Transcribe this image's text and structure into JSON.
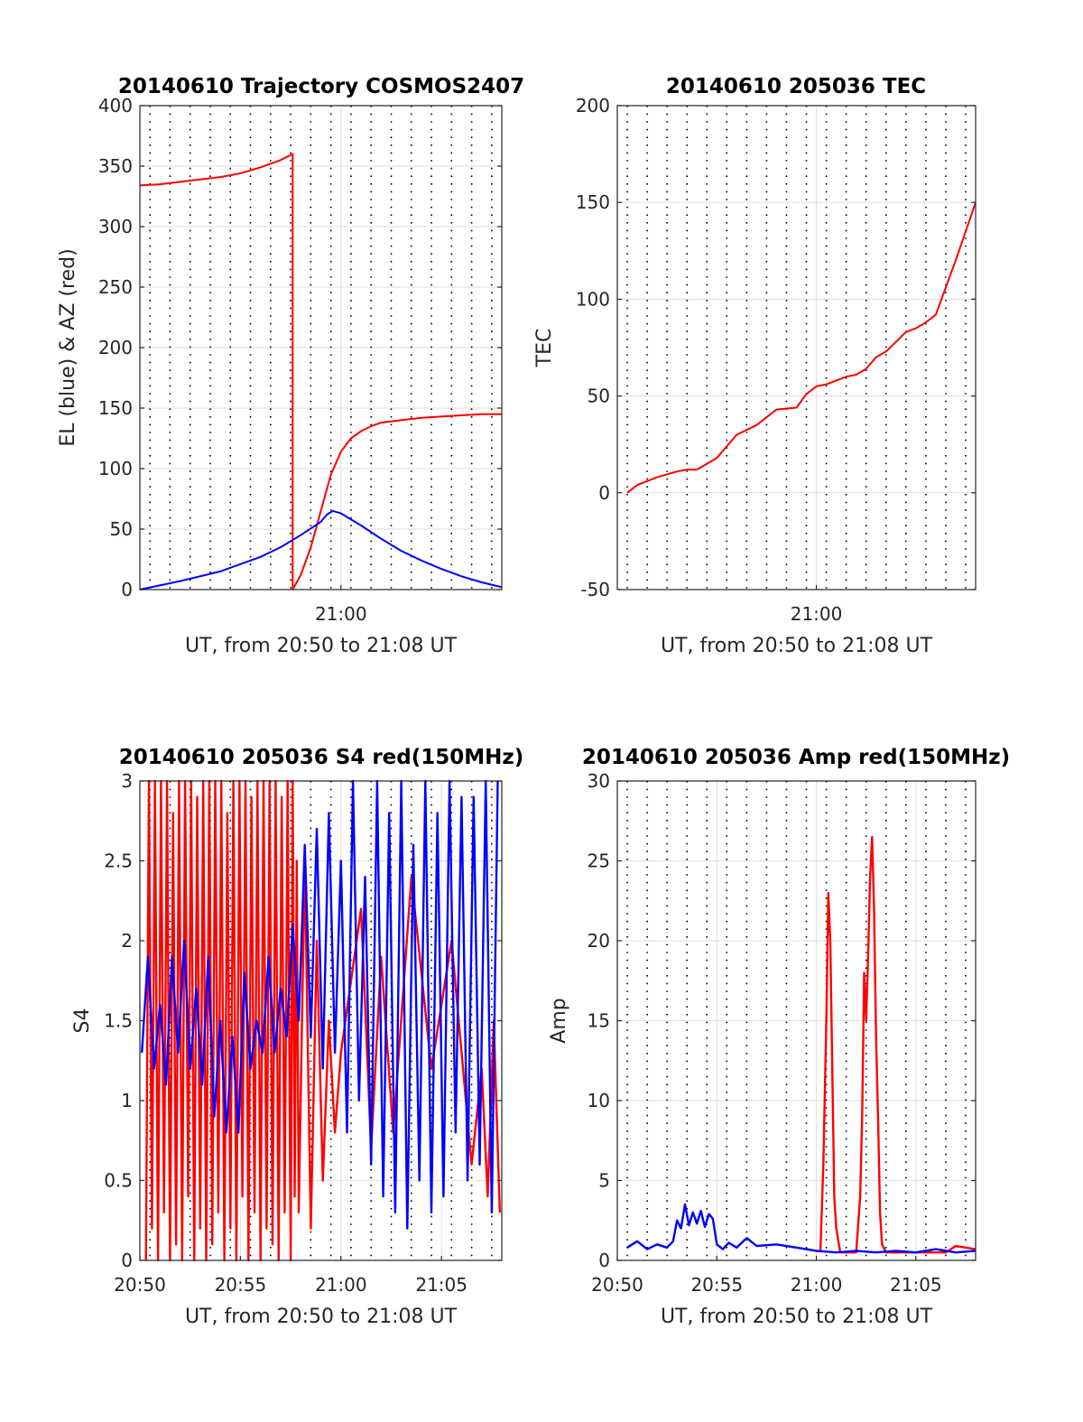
{
  "chart_data": [
    {
      "id": "trajectory",
      "type": "line",
      "title": "20140610 Trajectory COSMOS2407",
      "xlabel": "UT, from 20:50 to 21:08 UT",
      "ylabel": "EL (blue) & AZ (red)",
      "xlim": [
        0,
        18
      ],
      "ylim": [
        0,
        400
      ],
      "yticks": [
        0,
        50,
        100,
        150,
        200,
        250,
        300,
        350,
        400
      ],
      "xticks": [
        {
          "value": 10,
          "label": "21:00"
        }
      ],
      "grid": true,
      "series": [
        {
          "color": "#ff0000",
          "x": [
            0,
            1,
            2,
            3,
            4,
            5,
            6,
            7,
            7.6,
            7.6,
            8,
            8.5,
            9,
            9.5,
            10,
            10.5,
            11,
            11.5,
            12,
            13,
            14,
            15,
            16,
            17,
            18
          ],
          "y": [
            334,
            335,
            337,
            339,
            341,
            344,
            349,
            355,
            360,
            0,
            12,
            35,
            65,
            95,
            114,
            125,
            131,
            135,
            138,
            140,
            142,
            143,
            144,
            145,
            145
          ]
        },
        {
          "color": "#0000ff",
          "x": [
            0,
            2,
            4,
            6,
            7,
            8,
            9,
            9.3,
            9.6,
            10,
            11,
            12,
            13,
            14,
            15,
            16,
            17,
            18
          ],
          "y": [
            0,
            7,
            15,
            27,
            35,
            45,
            56,
            62,
            65,
            63,
            53,
            42,
            32,
            24,
            17,
            11,
            6,
            2
          ]
        }
      ]
    },
    {
      "id": "tec",
      "type": "line",
      "title": "20140610 205036 TEC",
      "xlabel": "UT, from 20:50 to 21:08 UT",
      "ylabel": "TEC",
      "xlim": [
        0,
        18
      ],
      "ylim": [
        -50,
        200
      ],
      "yticks": [
        -50,
        0,
        50,
        100,
        150,
        200
      ],
      "xticks": [
        {
          "value": 10,
          "label": "21:00"
        }
      ],
      "grid": true,
      "series": [
        {
          "color": "#ff0000",
          "x": [
            0.5,
            1,
            1.5,
            2,
            3,
            3.5,
            4,
            5,
            6,
            7,
            8,
            9,
            9.5,
            10,
            10.5,
            11,
            11.5,
            12,
            12.5,
            13,
            13.5,
            14,
            14.5,
            15,
            15.5,
            16,
            16.5,
            17,
            17.5,
            18
          ],
          "y": [
            0,
            4,
            6,
            8,
            11,
            12,
            12,
            18,
            30,
            35,
            43,
            44,
            51,
            55,
            56,
            58,
            60,
            61,
            64,
            70,
            73,
            78,
            83,
            85,
            88,
            92,
            106,
            120,
            135,
            150
          ]
        }
      ]
    },
    {
      "id": "s4",
      "type": "line",
      "title": "20140610 205036 S4 red(150MHz)",
      "xlabel": "UT, from 20:50 to 21:08 UT",
      "ylabel": "S4",
      "xlim": [
        0,
        18
      ],
      "ylim": [
        0,
        3
      ],
      "yticks": [
        0,
        0.5,
        1,
        1.5,
        2,
        2.5,
        3
      ],
      "yticklabels": [
        "0",
        "0.5",
        "1",
        "1.5",
        "2",
        "2.5",
        "3"
      ],
      "xticks": [
        {
          "value": 0,
          "label": "20:50"
        },
        {
          "value": 5,
          "label": "20:55"
        },
        {
          "value": 10,
          "label": "21:00"
        },
        {
          "value": 15,
          "label": "21:05"
        }
      ],
      "grid": true,
      "series": [
        {
          "color": "#ff0000",
          "x": [
            0.3,
            0.45,
            0.6,
            0.75,
            0.9,
            1.05,
            1.2,
            1.35,
            1.5,
            1.65,
            1.8,
            1.95,
            2.1,
            2.25,
            2.4,
            2.55,
            2.7,
            2.85,
            3.0,
            3.15,
            3.3,
            3.45,
            3.6,
            3.75,
            3.9,
            4.05,
            4.2,
            4.35,
            4.5,
            4.65,
            4.8,
            4.95,
            5.1,
            5.25,
            5.4,
            5.55,
            5.7,
            5.85,
            6.0,
            6.15,
            6.3,
            6.45,
            6.6,
            6.75,
            6.9,
            7.05,
            7.2,
            7.35,
            7.5,
            7.6,
            7.7,
            7.8,
            7.9,
            8.2,
            8.5,
            8.8,
            9.1,
            9.4,
            9.7,
            10.0,
            11.0,
            11.5,
            12.0,
            12.6,
            13.5,
            14.5,
            15.5,
            16.5,
            17.0,
            17.3,
            17.6,
            17.9
          ],
          "y": [
            0,
            3,
            0.2,
            3,
            0,
            3,
            0.3,
            3,
            0,
            2.8,
            0.1,
            3,
            0,
            3,
            0.4,
            3,
            0,
            2.9,
            0.2,
            3,
            0,
            3,
            0.1,
            3,
            0.3,
            3,
            0,
            2.8,
            0.2,
            3,
            0,
            3,
            0.4,
            3,
            0,
            2.9,
            0.3,
            3,
            0,
            3,
            0.2,
            3,
            0.1,
            3,
            0,
            2.9,
            0.3,
            3,
            0,
            3,
            0.4,
            2.5,
            0.3,
            2.5,
            0.2,
            2.0,
            0.5,
            1.5,
            0.8,
            1.3,
            2.2,
            0.7,
            1.9,
            0.8,
            2.4,
            1.2,
            2.0,
            0.6,
            1.2,
            0.4,
            1.5,
            0.3
          ]
        },
        {
          "color": "#0000ff",
          "x": [
            0.1,
            0.4,
            0.7,
            1.0,
            1.3,
            1.6,
            1.9,
            2.2,
            2.5,
            2.8,
            3.1,
            3.4,
            3.7,
            4.0,
            4.3,
            4.6,
            4.9,
            5.2,
            5.5,
            5.8,
            6.1,
            6.4,
            6.7,
            7.0,
            7.3,
            7.6,
            7.9,
            8.2,
            8.5,
            8.8,
            9.1,
            9.4,
            9.7,
            10.0,
            10.3,
            10.6,
            10.9,
            11.2,
            11.5,
            11.8,
            12.1,
            12.4,
            12.7,
            13.0,
            13.3,
            13.6,
            13.9,
            14.2,
            14.5,
            14.8,
            15.1,
            15.4,
            15.7,
            16.0,
            16.3,
            16.6,
            16.9,
            17.2,
            17.5,
            17.8
          ],
          "y": [
            1.3,
            1.9,
            1.2,
            1.6,
            1.1,
            1.9,
            1.3,
            2.0,
            1.2,
            1.7,
            1.1,
            1.9,
            0.9,
            1.5,
            0.8,
            1.4,
            0.8,
            1.8,
            1.2,
            1.5,
            1.3,
            1.9,
            1.3,
            1.7,
            1.4,
            2.1,
            1.5,
            2.6,
            1.4,
            2.7,
            1.2,
            2.8,
            1.3,
            2.5,
            0.8,
            3.0,
            1.0,
            2.4,
            0.6,
            3.0,
            0.4,
            2.8,
            0.3,
            3.0,
            0.2,
            2.6,
            0.5,
            3.0,
            0.3,
            2.8,
            0.4,
            3.0,
            0.8,
            2.9,
            0.5,
            2.9,
            0.6,
            3.0,
            0.3,
            3.0
          ]
        }
      ]
    },
    {
      "id": "amp",
      "type": "line",
      "title": "20140610 205036 Amp red(150MHz)",
      "xlabel": "UT, from 20:50 to 21:08 UT",
      "ylabel": "Amp",
      "xlim": [
        0,
        18
      ],
      "ylim": [
        0,
        30
      ],
      "yticks": [
        0,
        5,
        10,
        15,
        20,
        25,
        30
      ],
      "xticks": [
        {
          "value": 0,
          "label": "20:50"
        },
        {
          "value": 5,
          "label": "20:55"
        },
        {
          "value": 10,
          "label": "21:00"
        },
        {
          "value": 15,
          "label": "21:05"
        }
      ],
      "grid": true,
      "series": [
        {
          "color": "#ff0000",
          "x": [
            10.2,
            10.35,
            10.5,
            10.6,
            10.7,
            10.8,
            10.9,
            11.0,
            11.2,
            12.0,
            12.2,
            12.3,
            12.4,
            12.5,
            12.6,
            12.7,
            12.8,
            12.9,
            13.0,
            13.1,
            13.2,
            13.3,
            13.5,
            16.5,
            17.0,
            17.5,
            18.0
          ],
          "y": [
            0.5,
            6,
            15,
            23,
            20,
            12,
            4,
            2,
            0.5,
            0.5,
            4,
            9,
            18,
            15,
            19,
            24,
            26.5,
            22,
            14,
            9,
            3,
            1,
            0.5,
            0.5,
            0.9,
            0.8,
            0.7
          ]
        },
        {
          "color": "#0000ff",
          "x": [
            0.5,
            1.0,
            1.5,
            2.0,
            2.5,
            2.8,
            3.0,
            3.2,
            3.4,
            3.6,
            3.8,
            4.0,
            4.2,
            4.4,
            4.6,
            4.8,
            5.0,
            5.3,
            5.6,
            6.0,
            6.5,
            7.0,
            8.0,
            9.0,
            10.0,
            11.0,
            12.0,
            13.0,
            14.0,
            15.0,
            16.0,
            17.0,
            18.0
          ],
          "y": [
            0.8,
            1.2,
            0.7,
            1.0,
            0.8,
            1.2,
            2.5,
            2.0,
            3.5,
            2.2,
            3.0,
            2.3,
            3.1,
            2.1,
            2.9,
            2.6,
            1.0,
            0.7,
            1.1,
            0.8,
            1.4,
            0.9,
            1.0,
            0.8,
            0.6,
            0.5,
            0.6,
            0.5,
            0.6,
            0.5,
            0.7,
            0.5,
            0.6
          ]
        }
      ]
    }
  ]
}
